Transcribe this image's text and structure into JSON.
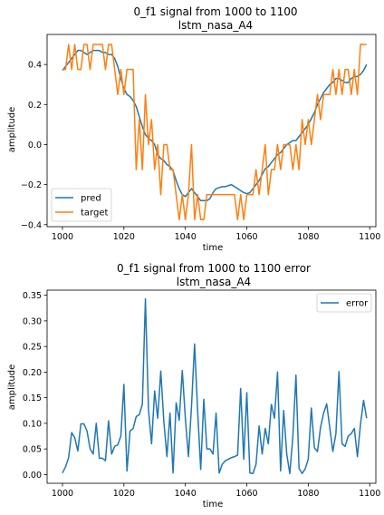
{
  "chart_data": [
    {
      "type": "line",
      "title": "0_f1 signal from 1000 to 1100",
      "subtitle": "lstm_nasa_A4",
      "xlabel": "time",
      "ylabel": "amplitude",
      "xlim": [
        995,
        1102
      ],
      "ylim": [
        -0.41,
        0.55
      ],
      "xticks": [
        1000,
        1020,
        1040,
        1060,
        1080,
        1100
      ],
      "yticks": [
        -0.4,
        -0.2,
        0.0,
        0.2,
        0.4
      ],
      "ytick_labels": [
        "−0.4",
        "−0.2",
        "0.0",
        "0.2",
        "0.4"
      ],
      "legend": "lower-left",
      "x": [
        1000,
        1001,
        1002,
        1003,
        1004,
        1005,
        1006,
        1007,
        1008,
        1009,
        1010,
        1011,
        1012,
        1013,
        1014,
        1015,
        1016,
        1017,
        1018,
        1019,
        1020,
        1021,
        1022,
        1023,
        1024,
        1025,
        1026,
        1027,
        1028,
        1029,
        1030,
        1031,
        1032,
        1033,
        1034,
        1035,
        1036,
        1037,
        1038,
        1039,
        1040,
        1041,
        1042,
        1043,
        1044,
        1045,
        1046,
        1047,
        1048,
        1049,
        1050,
        1051,
        1052,
        1053,
        1054,
        1055,
        1056,
        1057,
        1058,
        1059,
        1060,
        1061,
        1062,
        1063,
        1064,
        1065,
        1066,
        1067,
        1068,
        1069,
        1070,
        1071,
        1072,
        1073,
        1074,
        1075,
        1076,
        1077,
        1078,
        1079,
        1080,
        1081,
        1082,
        1083,
        1084,
        1085,
        1086,
        1087,
        1088,
        1089,
        1090,
        1091,
        1092,
        1093,
        1094,
        1095,
        1096,
        1097,
        1098,
        1099
      ],
      "series": [
        {
          "name": "pred",
          "color": "#1f77b4",
          "values": [
            0.37,
            0.39,
            0.41,
            0.43,
            0.45,
            0.47,
            0.47,
            0.46,
            0.45,
            0.46,
            0.47,
            0.47,
            0.47,
            0.46,
            0.46,
            0.45,
            0.45,
            0.43,
            0.39,
            0.33,
            0.28,
            0.25,
            0.24,
            0.22,
            0.19,
            0.14,
            0.09,
            0.05,
            0.03,
            0.02,
            0.0,
            -0.05,
            -0.07,
            -0.08,
            -0.1,
            -0.11,
            -0.13,
            -0.18,
            -0.22,
            -0.25,
            -0.26,
            -0.24,
            -0.22,
            -0.24,
            -0.26,
            -0.28,
            -0.28,
            -0.28,
            -0.27,
            -0.24,
            -0.22,
            -0.215,
            -0.21,
            -0.21,
            -0.205,
            -0.2,
            -0.21,
            -0.22,
            -0.23,
            -0.24,
            -0.245,
            -0.24,
            -0.22,
            -0.2,
            -0.18,
            -0.15,
            -0.12,
            -0.11,
            -0.09,
            -0.07,
            -0.05,
            -0.04,
            -0.02,
            0.0,
            0.01,
            0.02,
            0.02,
            0.04,
            0.06,
            0.08,
            0.1,
            0.13,
            0.16,
            0.2,
            0.23,
            0.26,
            0.28,
            0.3,
            0.31,
            0.33,
            0.33,
            0.32,
            0.31,
            0.31,
            0.33,
            0.34,
            0.34,
            0.35,
            0.37,
            0.4
          ]
        },
        {
          "name": "target",
          "color": "#ff7f0e",
          "values": [
            0.375,
            0.375,
            0.5,
            0.375,
            0.5,
            0.375,
            0.375,
            0.5,
            0.5,
            0.375,
            0.5,
            0.5,
            0.5,
            0.5,
            0.375,
            0.5,
            0.5,
            0.375,
            0.25,
            0.375,
            0.25,
            0.375,
            0.375,
            0.375,
            -0.125,
            0.125,
            -0.125,
            0.25,
            0.0,
            0.125,
            -0.125,
            0.0,
            -0.25,
            0.0,
            0.0,
            -0.125,
            -0.125,
            -0.25,
            -0.375,
            -0.25,
            -0.375,
            -0.25,
            0.0,
            -0.375,
            -0.25,
            -0.375,
            -0.375,
            -0.25,
            -0.25,
            -0.25,
            -0.25,
            -0.25,
            -0.25,
            -0.25,
            -0.25,
            -0.25,
            -0.25,
            -0.375,
            -0.25,
            -0.375,
            -0.25,
            -0.25,
            -0.25,
            -0.125,
            -0.25,
            -0.125,
            0.0,
            -0.25,
            -0.125,
            -0.125,
            0.0,
            -0.125,
            0.0,
            0.0,
            0.0,
            -0.125,
            0.0,
            -0.125,
            0.125,
            0.0,
            0.125,
            0.0,
            0.125,
            0.25,
            0.125,
            0.25,
            0.25,
            0.25,
            0.375,
            0.25,
            0.375,
            0.25,
            0.375,
            0.375,
            0.25,
            0.375,
            0.25,
            0.5,
            0.5,
            0.5
          ]
        }
      ]
    },
    {
      "type": "line",
      "title": "0_f1 signal from 1000 to 1100  error",
      "subtitle": "lstm_nasa_A4",
      "xlabel": "time",
      "ylabel": "amplitude",
      "xlim": [
        995,
        1102
      ],
      "ylim": [
        -0.017,
        0.36
      ],
      "xticks": [
        1000,
        1020,
        1040,
        1060,
        1080,
        1100
      ],
      "yticks": [
        0.0,
        0.05,
        0.1,
        0.15,
        0.2,
        0.25,
        0.3,
        0.35
      ],
      "ytick_labels": [
        "0.00",
        "0.05",
        "0.10",
        "0.15",
        "0.20",
        "0.25",
        "0.30",
        "0.35"
      ],
      "legend": "top-right",
      "x": [
        1000,
        1001,
        1002,
        1003,
        1004,
        1005,
        1006,
        1007,
        1008,
        1009,
        1010,
        1011,
        1012,
        1013,
        1014,
        1015,
        1016,
        1017,
        1018,
        1019,
        1020,
        1021,
        1022,
        1023,
        1024,
        1025,
        1026,
        1027,
        1028,
        1029,
        1030,
        1031,
        1032,
        1033,
        1034,
        1035,
        1036,
        1037,
        1038,
        1039,
        1040,
        1041,
        1042,
        1043,
        1044,
        1045,
        1046,
        1047,
        1048,
        1049,
        1050,
        1051,
        1052,
        1053,
        1054,
        1055,
        1056,
        1057,
        1058,
        1059,
        1060,
        1061,
        1062,
        1063,
        1064,
        1065,
        1066,
        1067,
        1068,
        1069,
        1070,
        1071,
        1072,
        1073,
        1074,
        1075,
        1076,
        1077,
        1078,
        1079,
        1080,
        1081,
        1082,
        1083,
        1084,
        1085,
        1086,
        1087,
        1088,
        1089,
        1090,
        1091,
        1092,
        1093,
        1094,
        1095,
        1096,
        1097,
        1098,
        1099
      ],
      "series": [
        {
          "name": "error",
          "color": "#1f77b4",
          "values": [
            0.003,
            0.015,
            0.033,
            0.082,
            0.072,
            0.046,
            0.099,
            0.099,
            0.085,
            0.05,
            0.04,
            0.1,
            0.032,
            0.032,
            0.027,
            0.105,
            0.04,
            0.055,
            0.058,
            0.075,
            0.176,
            0.007,
            0.085,
            0.09,
            0.113,
            0.117,
            0.137,
            0.343,
            0.127,
            0.06,
            0.163,
            0.11,
            0.202,
            0.103,
            0.035,
            0.12,
            0.003,
            0.14,
            0.106,
            0.203,
            0.11,
            0.035,
            0.133,
            0.255,
            0.124,
            0.01,
            0.147,
            0.05,
            0.05,
            0.04,
            0.12,
            0.003,
            0.02,
            0.027,
            0.03,
            0.033,
            0.035,
            0.038,
            0.168,
            0.03,
            0.16,
            0.003,
            0.002,
            0.02,
            0.095,
            0.04,
            0.09,
            0.06,
            0.137,
            0.11,
            0.2,
            0.007,
            0.125,
            0.04,
            0.002,
            0.075,
            0.194,
            0.012,
            0.002,
            0.011,
            0.03,
            0.13,
            0.052,
            0.045,
            0.092,
            0.12,
            0.138,
            0.092,
            0.045,
            0.08,
            0.201,
            0.06,
            0.055,
            0.075,
            0.08,
            0.09,
            0.035,
            0.098,
            0.145,
            0.11
          ]
        }
      ]
    }
  ]
}
